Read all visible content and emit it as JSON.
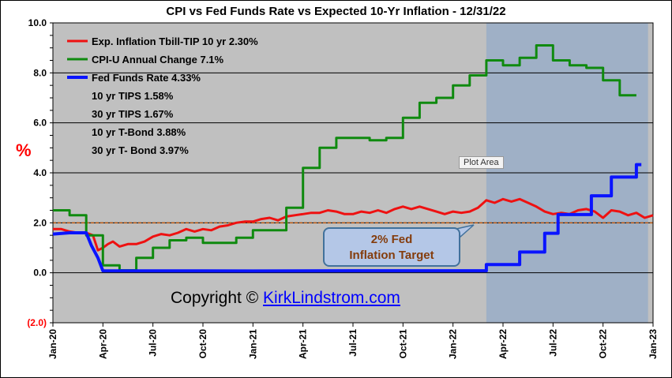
{
  "chart_data": {
    "type": "line",
    "title": "CPI vs Fed Funds Rate vs Expected 10-Yr Inflation - 12/31/22",
    "ylabel": "%",
    "ylim": [
      -2,
      10
    ],
    "yticks": [
      {
        "value": 10,
        "label": "10.0"
      },
      {
        "value": 8,
        "label": "8.0"
      },
      {
        "value": 6,
        "label": "6.0"
      },
      {
        "value": 4,
        "label": "4.0"
      },
      {
        "value": 2,
        "label": "2.0"
      },
      {
        "value": 0,
        "label": "0.0"
      },
      {
        "value": -2,
        "label": "(2.0)"
      }
    ],
    "xlim": [
      0,
      36
    ],
    "xticks": [
      {
        "value": 0,
        "label": "Jan-20"
      },
      {
        "value": 3,
        "label": "Apr-20"
      },
      {
        "value": 6,
        "label": "Jul-20"
      },
      {
        "value": 9,
        "label": "Oct-20"
      },
      {
        "value": 12,
        "label": "Jan-21"
      },
      {
        "value": 15,
        "label": "Apr-21"
      },
      {
        "value": 18,
        "label": "Jul-21"
      },
      {
        "value": 21,
        "label": "Oct-21"
      },
      {
        "value": 24,
        "label": "Jan-22"
      },
      {
        "value": 27,
        "label": "Apr-22"
      },
      {
        "value": 30,
        "label": "Jul-22"
      },
      {
        "value": 33,
        "label": "Oct-22"
      },
      {
        "value": 36,
        "label": "Jan-23"
      }
    ],
    "shaded_region": {
      "from": 26.0,
      "to": 35.7
    },
    "reference_line": {
      "value": 2.0,
      "label": "2% Fed Inflation Target"
    },
    "series": [
      {
        "name": "Exp. Inflation Tbill-TIP 10 yr 2.30%",
        "color": "#ee1111",
        "points": [
          [
            0,
            1.75
          ],
          [
            0.5,
            1.75
          ],
          [
            1,
            1.65
          ],
          [
            1.5,
            1.6
          ],
          [
            2,
            1.6
          ],
          [
            2.4,
            1.5
          ],
          [
            2.7,
            0.9
          ],
          [
            3,
            1.0
          ],
          [
            3.3,
            1.15
          ],
          [
            3.6,
            1.25
          ],
          [
            4,
            1.05
          ],
          [
            4.5,
            1.15
          ],
          [
            5,
            1.15
          ],
          [
            5.5,
            1.25
          ],
          [
            6,
            1.45
          ],
          [
            6.5,
            1.55
          ],
          [
            7,
            1.5
          ],
          [
            7.5,
            1.6
          ],
          [
            8,
            1.75
          ],
          [
            8.5,
            1.65
          ],
          [
            9,
            1.75
          ],
          [
            9.5,
            1.7
          ],
          [
            10,
            1.85
          ],
          [
            10.5,
            1.9
          ],
          [
            11,
            2.0
          ],
          [
            11.5,
            2.05
          ],
          [
            12,
            2.05
          ],
          [
            12.5,
            2.15
          ],
          [
            13,
            2.2
          ],
          [
            13.5,
            2.1
          ],
          [
            14,
            2.25
          ],
          [
            14.5,
            2.3
          ],
          [
            15,
            2.35
          ],
          [
            15.5,
            2.4
          ],
          [
            16,
            2.4
          ],
          [
            16.5,
            2.5
          ],
          [
            17,
            2.45
          ],
          [
            17.5,
            2.35
          ],
          [
            18,
            2.35
          ],
          [
            18.5,
            2.45
          ],
          [
            19,
            2.4
          ],
          [
            19.5,
            2.5
          ],
          [
            20,
            2.4
          ],
          [
            20.5,
            2.55
          ],
          [
            21,
            2.65
          ],
          [
            21.5,
            2.55
          ],
          [
            22,
            2.65
          ],
          [
            22.5,
            2.55
          ],
          [
            23,
            2.45
          ],
          [
            23.5,
            2.35
          ],
          [
            24,
            2.45
          ],
          [
            24.5,
            2.4
          ],
          [
            25,
            2.45
          ],
          [
            25.5,
            2.6
          ],
          [
            26,
            2.9
          ],
          [
            26.5,
            2.8
          ],
          [
            27,
            2.95
          ],
          [
            27.5,
            2.85
          ],
          [
            28,
            2.95
          ],
          [
            28.5,
            2.8
          ],
          [
            29,
            2.65
          ],
          [
            29.5,
            2.45
          ],
          [
            30,
            2.35
          ],
          [
            30.5,
            2.4
          ],
          [
            31,
            2.35
          ],
          [
            31.5,
            2.5
          ],
          [
            32,
            2.55
          ],
          [
            32.5,
            2.45
          ],
          [
            33,
            2.2
          ],
          [
            33.5,
            2.5
          ],
          [
            34,
            2.45
          ],
          [
            34.5,
            2.3
          ],
          [
            35,
            2.4
          ],
          [
            35.5,
            2.2
          ],
          [
            36,
            2.3
          ]
        ]
      },
      {
        "name": "CPI-U Annual Change 7.1%",
        "color": "#0f8a0f",
        "points": [
          [
            0,
            2.5
          ],
          [
            1,
            2.5
          ],
          [
            1,
            2.3
          ],
          [
            2,
            2.3
          ],
          [
            2,
            1.5
          ],
          [
            3,
            1.5
          ],
          [
            3,
            0.3
          ],
          [
            4,
            0.3
          ],
          [
            4,
            0.1
          ],
          [
            5,
            0.1
          ],
          [
            5,
            0.6
          ],
          [
            6,
            0.6
          ],
          [
            6,
            1.0
          ],
          [
            7,
            1.0
          ],
          [
            7,
            1.3
          ],
          [
            8,
            1.3
          ],
          [
            8,
            1.4
          ],
          [
            9,
            1.4
          ],
          [
            9,
            1.2
          ],
          [
            10,
            1.2
          ],
          [
            10,
            1.2
          ],
          [
            11,
            1.2
          ],
          [
            11,
            1.4
          ],
          [
            12,
            1.4
          ],
          [
            12,
            1.7
          ],
          [
            13,
            1.7
          ],
          [
            13,
            1.7
          ],
          [
            14,
            1.7
          ],
          [
            14,
            2.6
          ],
          [
            15,
            2.6
          ],
          [
            15,
            4.2
          ],
          [
            16,
            4.2
          ],
          [
            16,
            5.0
          ],
          [
            17,
            5.0
          ],
          [
            17,
            5.4
          ],
          [
            18,
            5.4
          ],
          [
            18,
            5.4
          ],
          [
            19,
            5.4
          ],
          [
            19,
            5.3
          ],
          [
            20,
            5.3
          ],
          [
            20,
            5.4
          ],
          [
            21,
            5.4
          ],
          [
            21,
            6.2
          ],
          [
            22,
            6.2
          ],
          [
            22,
            6.8
          ],
          [
            23,
            6.8
          ],
          [
            23,
            7.0
          ],
          [
            24,
            7.0
          ],
          [
            24,
            7.5
          ],
          [
            25,
            7.5
          ],
          [
            25,
            7.9
          ],
          [
            26,
            7.9
          ],
          [
            26,
            8.5
          ],
          [
            27,
            8.5
          ],
          [
            27,
            8.3
          ],
          [
            28,
            8.3
          ],
          [
            28,
            8.6
          ],
          [
            29,
            8.6
          ],
          [
            29,
            9.1
          ],
          [
            30,
            9.1
          ],
          [
            30,
            8.5
          ],
          [
            31,
            8.5
          ],
          [
            31,
            8.3
          ],
          [
            32,
            8.3
          ],
          [
            32,
            8.2
          ],
          [
            33,
            8.2
          ],
          [
            33,
            7.7
          ],
          [
            34,
            7.7
          ],
          [
            34,
            7.1
          ],
          [
            35,
            7.1
          ]
        ]
      },
      {
        "name": "Fed Funds Rate 4.33%",
        "color": "#0a14ff",
        "points": [
          [
            0,
            1.55
          ],
          [
            1,
            1.6
          ],
          [
            2,
            1.6
          ],
          [
            2.3,
            1.1
          ],
          [
            2.7,
            0.6
          ],
          [
            3,
            0.08
          ],
          [
            12,
            0.07
          ],
          [
            18,
            0.08
          ],
          [
            24,
            0.08
          ],
          [
            26,
            0.08
          ],
          [
            26,
            0.33
          ],
          [
            28,
            0.33
          ],
          [
            28,
            0.83
          ],
          [
            29.5,
            0.83
          ],
          [
            29.5,
            1.58
          ],
          [
            30.3,
            1.58
          ],
          [
            30.3,
            2.33
          ],
          [
            31.2,
            2.33
          ],
          [
            32.3,
            2.33
          ],
          [
            32.3,
            3.08
          ],
          [
            33.5,
            3.08
          ],
          [
            33.5,
            3.83
          ],
          [
            35,
            3.83
          ],
          [
            35,
            4.33
          ],
          [
            35.3,
            4.33
          ]
        ]
      }
    ],
    "legend_extra": [
      "10 yr TIPS 1.58%",
      "30 yr TIPS 1.67%",
      "10 yr T-Bond 3.88%",
      "30 yr T- Bond 3.97%"
    ],
    "colors": {
      "plot_bg": "#c0c0c0",
      "shade": "#9fb0c6",
      "grid": "#000000",
      "ref_line": "#c05a11",
      "neg_tick": "#ff0000"
    }
  },
  "annotations": {
    "callout": {
      "line1": "2% Fed",
      "line2": "Inflation Target"
    },
    "tooltip": "Plot Area",
    "copyright_prefix": "Copyright © ",
    "copyright_link": "KirkLindstrom.com"
  }
}
